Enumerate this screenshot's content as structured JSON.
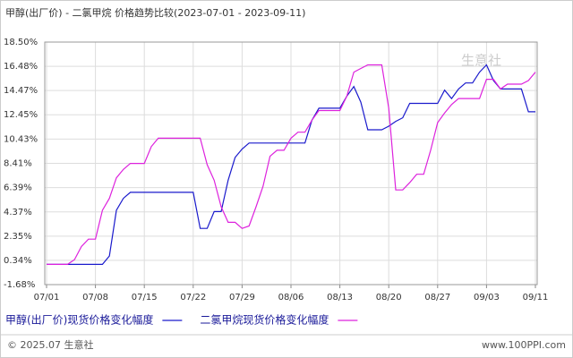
{
  "chart_data": {
    "type": "line",
    "title": "甲醇(出厂价) - 二氯甲烷 价格趋势比较(2023-07-01 - 2023-09-11)",
    "categories": [
      "07/01",
      null,
      null,
      null,
      null,
      null,
      null,
      "07/08",
      null,
      null,
      null,
      null,
      null,
      null,
      "07/15",
      null,
      null,
      null,
      null,
      null,
      null,
      "07/22",
      null,
      null,
      null,
      null,
      null,
      null,
      "07/29",
      null,
      null,
      null,
      null,
      null,
      null,
      "08/06",
      null,
      null,
      null,
      null,
      null,
      null,
      "08/13",
      null,
      null,
      null,
      null,
      null,
      null,
      "08/20",
      null,
      null,
      null,
      null,
      null,
      null,
      "08/27",
      null,
      null,
      null,
      null,
      null,
      null,
      "09/03",
      null,
      null,
      null,
      null,
      null,
      null,
      "09/11"
    ],
    "series": [
      {
        "name": "甲醇(出厂价)现货价格变化幅度",
        "color": "#1a1acc",
        "values": [
          0,
          0,
          0,
          0,
          0,
          0,
          0,
          0,
          0,
          0.7,
          4.5,
          5.5,
          6.0,
          6.0,
          6.0,
          6.0,
          6.0,
          6.0,
          6.0,
          6.0,
          6.0,
          6.0,
          3.0,
          3.0,
          4.4,
          4.4,
          7.0,
          8.9,
          9.6,
          10.1,
          10.1,
          10.1,
          10.1,
          10.1,
          10.1,
          10.1,
          10.1,
          10.1,
          12.0,
          13.0,
          13.0,
          13.0,
          13.0,
          14.0,
          14.8,
          13.5,
          11.2,
          11.2,
          11.2,
          11.5,
          11.9,
          12.2,
          13.4,
          13.4,
          13.4,
          13.4,
          13.4,
          14.5,
          13.8,
          14.6,
          15.1,
          15.1,
          16.0,
          16.6,
          15.3,
          14.6,
          14.6,
          14.6,
          14.6,
          12.7,
          12.7
        ]
      },
      {
        "name": "二氯甲烷现货价格变化幅度",
        "color": "#dd22dd",
        "values": [
          0,
          0,
          0,
          0,
          0.4,
          1.5,
          2.1,
          2.1,
          4.5,
          5.5,
          7.2,
          7.9,
          8.4,
          8.4,
          8.4,
          9.8,
          10.5,
          10.5,
          10.5,
          10.5,
          10.5,
          10.5,
          10.5,
          8.3,
          7.0,
          4.8,
          3.5,
          3.5,
          3.0,
          3.2,
          4.8,
          6.5,
          9.0,
          9.5,
          9.5,
          10.5,
          11.0,
          11.0,
          12.0,
          12.8,
          12.8,
          12.8,
          12.8,
          14.0,
          16.0,
          16.3,
          16.6,
          16.6,
          16.6,
          13.0,
          6.2,
          6.2,
          6.8,
          7.5,
          7.5,
          9.5,
          11.8,
          12.6,
          13.3,
          13.8,
          13.8,
          13.8,
          13.8,
          15.4,
          15.4,
          14.6,
          15.0,
          15.0,
          15.0,
          15.3,
          16.0
        ]
      }
    ],
    "ylim": [
      -1.68,
      18.5
    ],
    "yticks": [
      {
        "value": -1.68,
        "label": "-1.68%"
      },
      {
        "value": 0.34,
        "label": "0.34%"
      },
      {
        "value": 2.35,
        "label": "2.35%"
      },
      {
        "value": 4.37,
        "label": "4.37%"
      },
      {
        "value": 6.39,
        "label": "6.39%"
      },
      {
        "value": 8.41,
        "label": "8.41%"
      },
      {
        "value": 10.43,
        "label": "10.43%"
      },
      {
        "value": 12.45,
        "label": "12.45%"
      },
      {
        "value": 14.47,
        "label": "14.47%"
      },
      {
        "value": 16.48,
        "label": "16.48%"
      },
      {
        "value": 18.5,
        "label": "18.50%"
      }
    ],
    "grid": true,
    "watermark": "生意社",
    "footer_left": "© 2025.07 生意社",
    "footer_right": "www.100PPI.com"
  }
}
